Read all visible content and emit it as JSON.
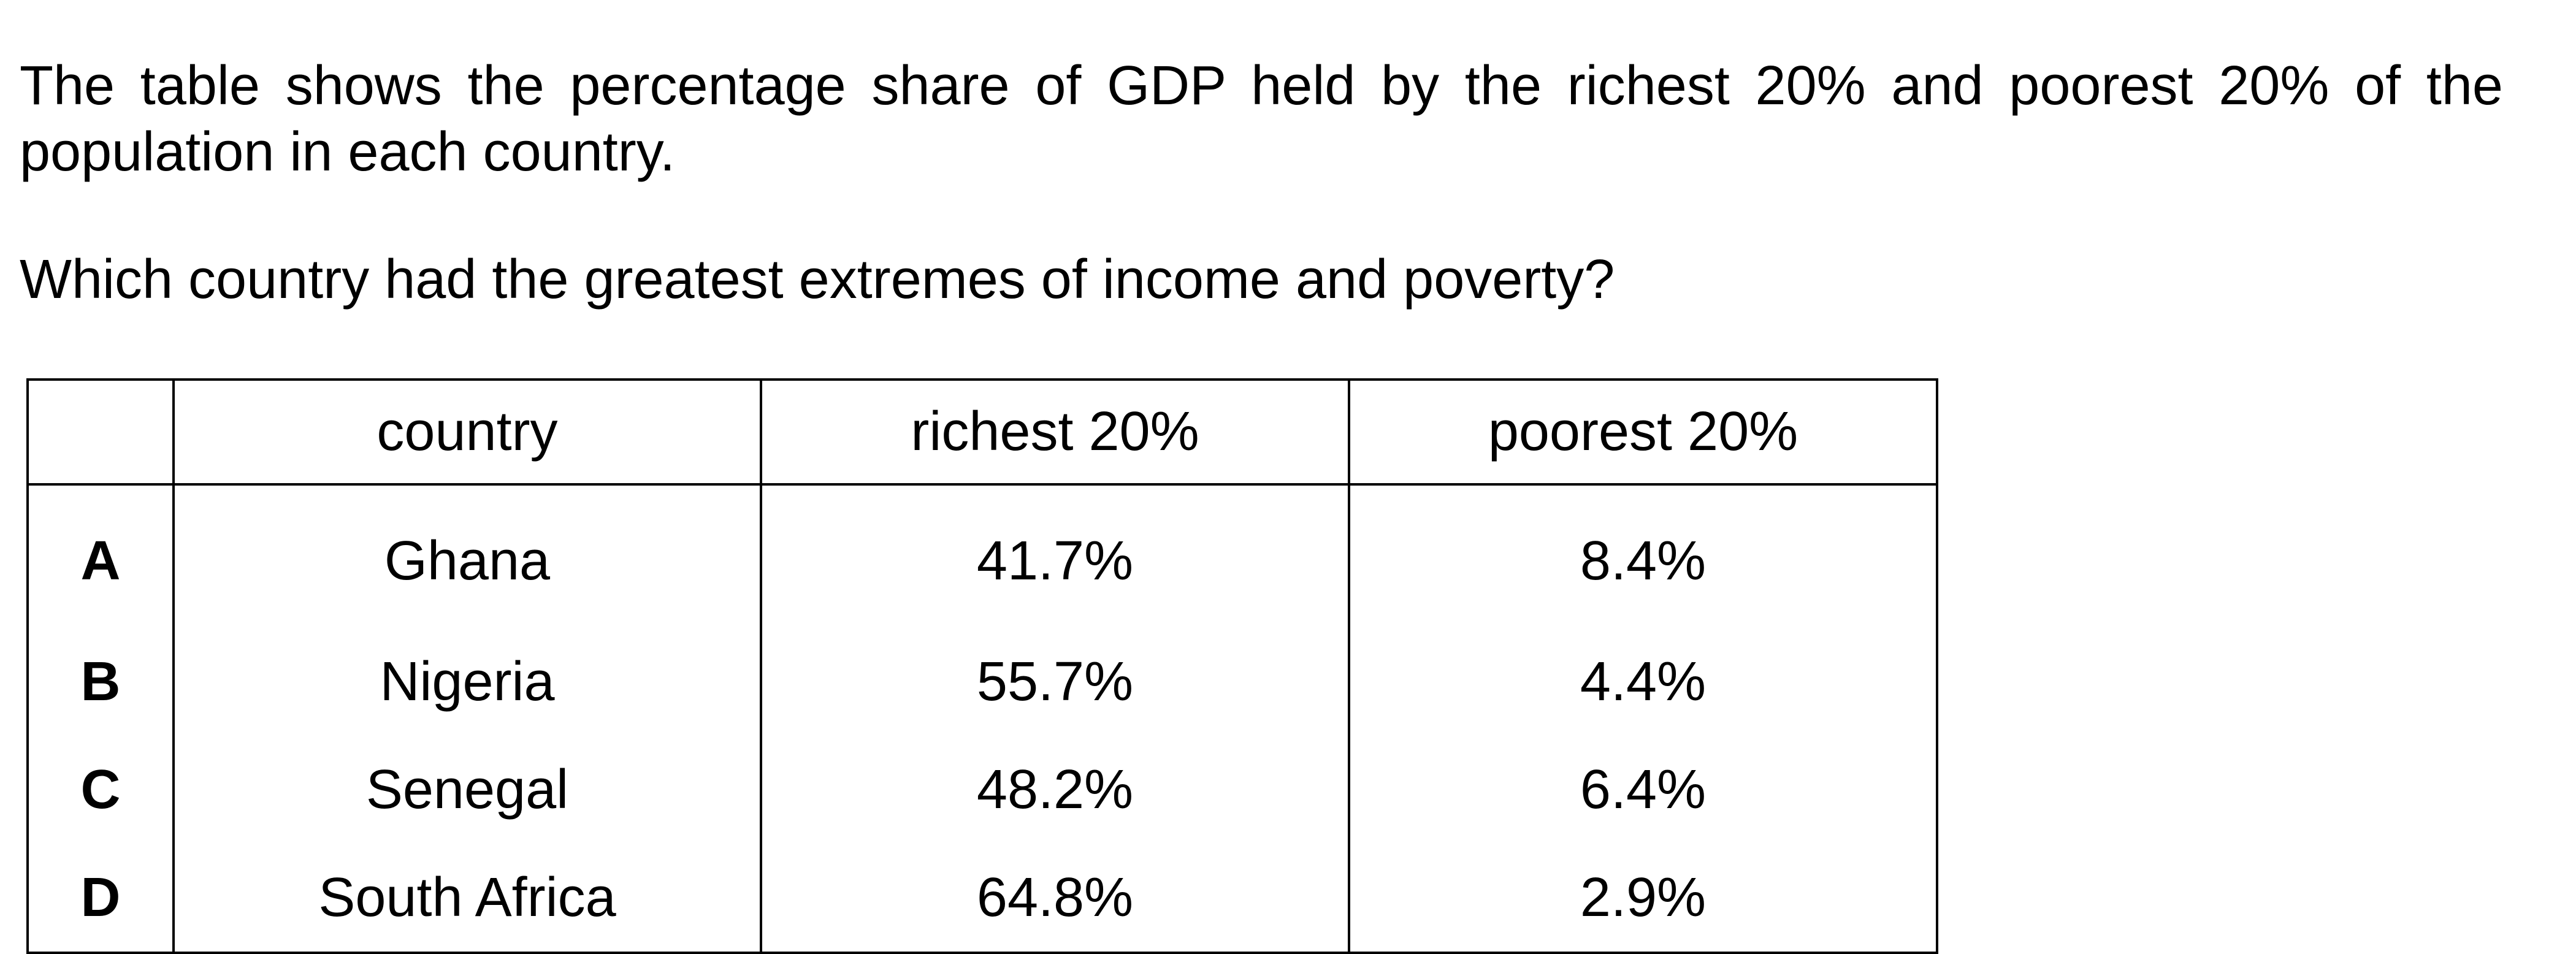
{
  "intro": "The table shows the percentage share of GDP held by the richest 20% and poorest 20% of the population in each country.",
  "question": "Which country had the greatest extremes of income and poverty?",
  "table": {
    "headers": [
      "",
      "country",
      "richest 20%",
      "poorest 20%"
    ],
    "rows": [
      {
        "option": "A",
        "country": "Ghana",
        "richest": "41.7%",
        "poorest": "8.4%"
      },
      {
        "option": "B",
        "country": "Nigeria",
        "richest": "55.7%",
        "poorest": "4.4%"
      },
      {
        "option": "C",
        "country": "Senegal",
        "richest": "48.2%",
        "poorest": "6.4%"
      },
      {
        "option": "D",
        "country": "South Africa",
        "richest": "64.8%",
        "poorest": "2.9%"
      }
    ]
  }
}
